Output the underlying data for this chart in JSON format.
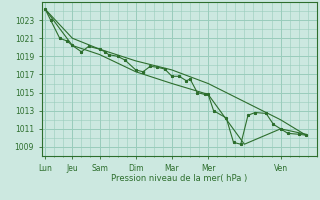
{
  "title": "",
  "xlabel": "Pression niveau de la mer( hPa )",
  "background_color": "#cce8e0",
  "plot_bg_color": "#cce8e0",
  "grid_color": "#99ccbb",
  "line_color": "#2d6e2d",
  "ylim": [
    1008.0,
    1025.0
  ],
  "yticks": [
    1009,
    1011,
    1013,
    1015,
    1017,
    1019,
    1021,
    1023
  ],
  "day_labels": [
    "Lun",
    "Jeu",
    "Sam",
    "Dim",
    "Mar",
    "Mer",
    "Ven"
  ],
  "day_positions": [
    0.0,
    0.75,
    1.5,
    2.5,
    3.5,
    4.5,
    6.5
  ],
  "xlim": [
    -0.1,
    7.4
  ],
  "series1_x": [
    0.0,
    0.15,
    0.4,
    0.6,
    0.75,
    1.0,
    1.2,
    1.5,
    1.65,
    1.75,
    2.0,
    2.2,
    2.5,
    2.7,
    2.9,
    3.1,
    3.3,
    3.5,
    3.7,
    3.9,
    4.0,
    4.2,
    4.4,
    4.5,
    4.65,
    5.0,
    5.2,
    5.4,
    5.6,
    5.8,
    6.1,
    6.3,
    6.5,
    6.7,
    7.0,
    7.2
  ],
  "series1_y": [
    1024.2,
    1023.0,
    1021.0,
    1020.7,
    1020.2,
    1019.5,
    1020.1,
    1019.8,
    1019.5,
    1019.2,
    1019.0,
    1018.6,
    1017.5,
    1017.3,
    1017.9,
    1017.8,
    1017.6,
    1016.8,
    1016.8,
    1016.3,
    1016.5,
    1015.0,
    1014.8,
    1014.8,
    1013.0,
    1012.2,
    1009.5,
    1009.3,
    1012.5,
    1012.8,
    1012.7,
    1011.5,
    1011.0,
    1010.5,
    1010.4,
    1010.3
  ],
  "series2_x": [
    0.0,
    0.75,
    1.5,
    2.5,
    3.5,
    4.5,
    5.5,
    6.5,
    7.2
  ],
  "series2_y": [
    1024.2,
    1021.0,
    1019.8,
    1018.5,
    1017.5,
    1016.0,
    1014.0,
    1012.0,
    1010.3
  ],
  "series3_x": [
    0.0,
    0.75,
    1.5,
    2.5,
    3.5,
    4.5,
    5.5,
    6.5,
    7.2
  ],
  "series3_y": [
    1024.2,
    1020.2,
    1019.2,
    1017.3,
    1016.0,
    1014.8,
    1009.3,
    1011.0,
    1010.4
  ]
}
